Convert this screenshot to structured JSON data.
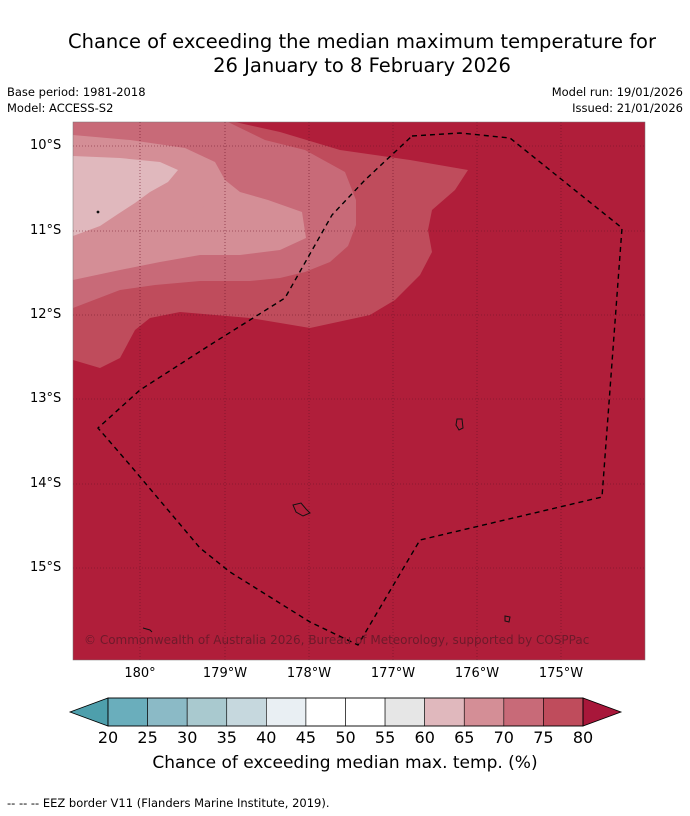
{
  "header": {
    "title_line1": "Chance of exceeding the median maximum temperature for",
    "title_line2": "26 January to 8 February 2026",
    "base_period": "Base period: 1981-2018",
    "model": "Model: ACCESS-S2",
    "model_run": "Model run: 19/01/2026",
    "issued": "Issued: 21/01/2026"
  },
  "map": {
    "latitude_labels": [
      "10°S",
      "11°S",
      "12°S",
      "13°S",
      "14°S",
      "15°S"
    ],
    "longitude_labels": [
      "180°",
      "179°W",
      "178°W",
      "177°W",
      "176°W",
      "175°W"
    ],
    "copyright": "© Commonwealth of Australia 2026, Bureau of Meteorology, supported by COSPPac",
    "colors": {
      "c60_65": "#e0b8bd",
      "c65_70": "#d48e96",
      "c70_75": "#c86a78",
      "c75_80": "#bf4c5c",
      "c80_plus": "#b01e3a"
    }
  },
  "colorbar": {
    "ticks": [
      "20",
      "25",
      "30",
      "35",
      "40",
      "45",
      "50",
      "55",
      "60",
      "65",
      "70",
      "75",
      "80"
    ],
    "colors": [
      "#6aaebc",
      "#8bbac6",
      "#a9c9cf",
      "#c6d8de",
      "#e9eff3",
      "#ffffff",
      "#ffffff",
      "#e6e6e6",
      "#e0b8bd",
      "#d48e96",
      "#c86a78",
      "#bf4c5c"
    ],
    "low_extend_color": "#4e9fac",
    "high_extend_color": "#a8173a",
    "label": "Chance of exceeding median max. temp. (%)"
  },
  "footnote": "--  --  -- EEZ border V11 (Flanders Marine Institute, 2019)."
}
